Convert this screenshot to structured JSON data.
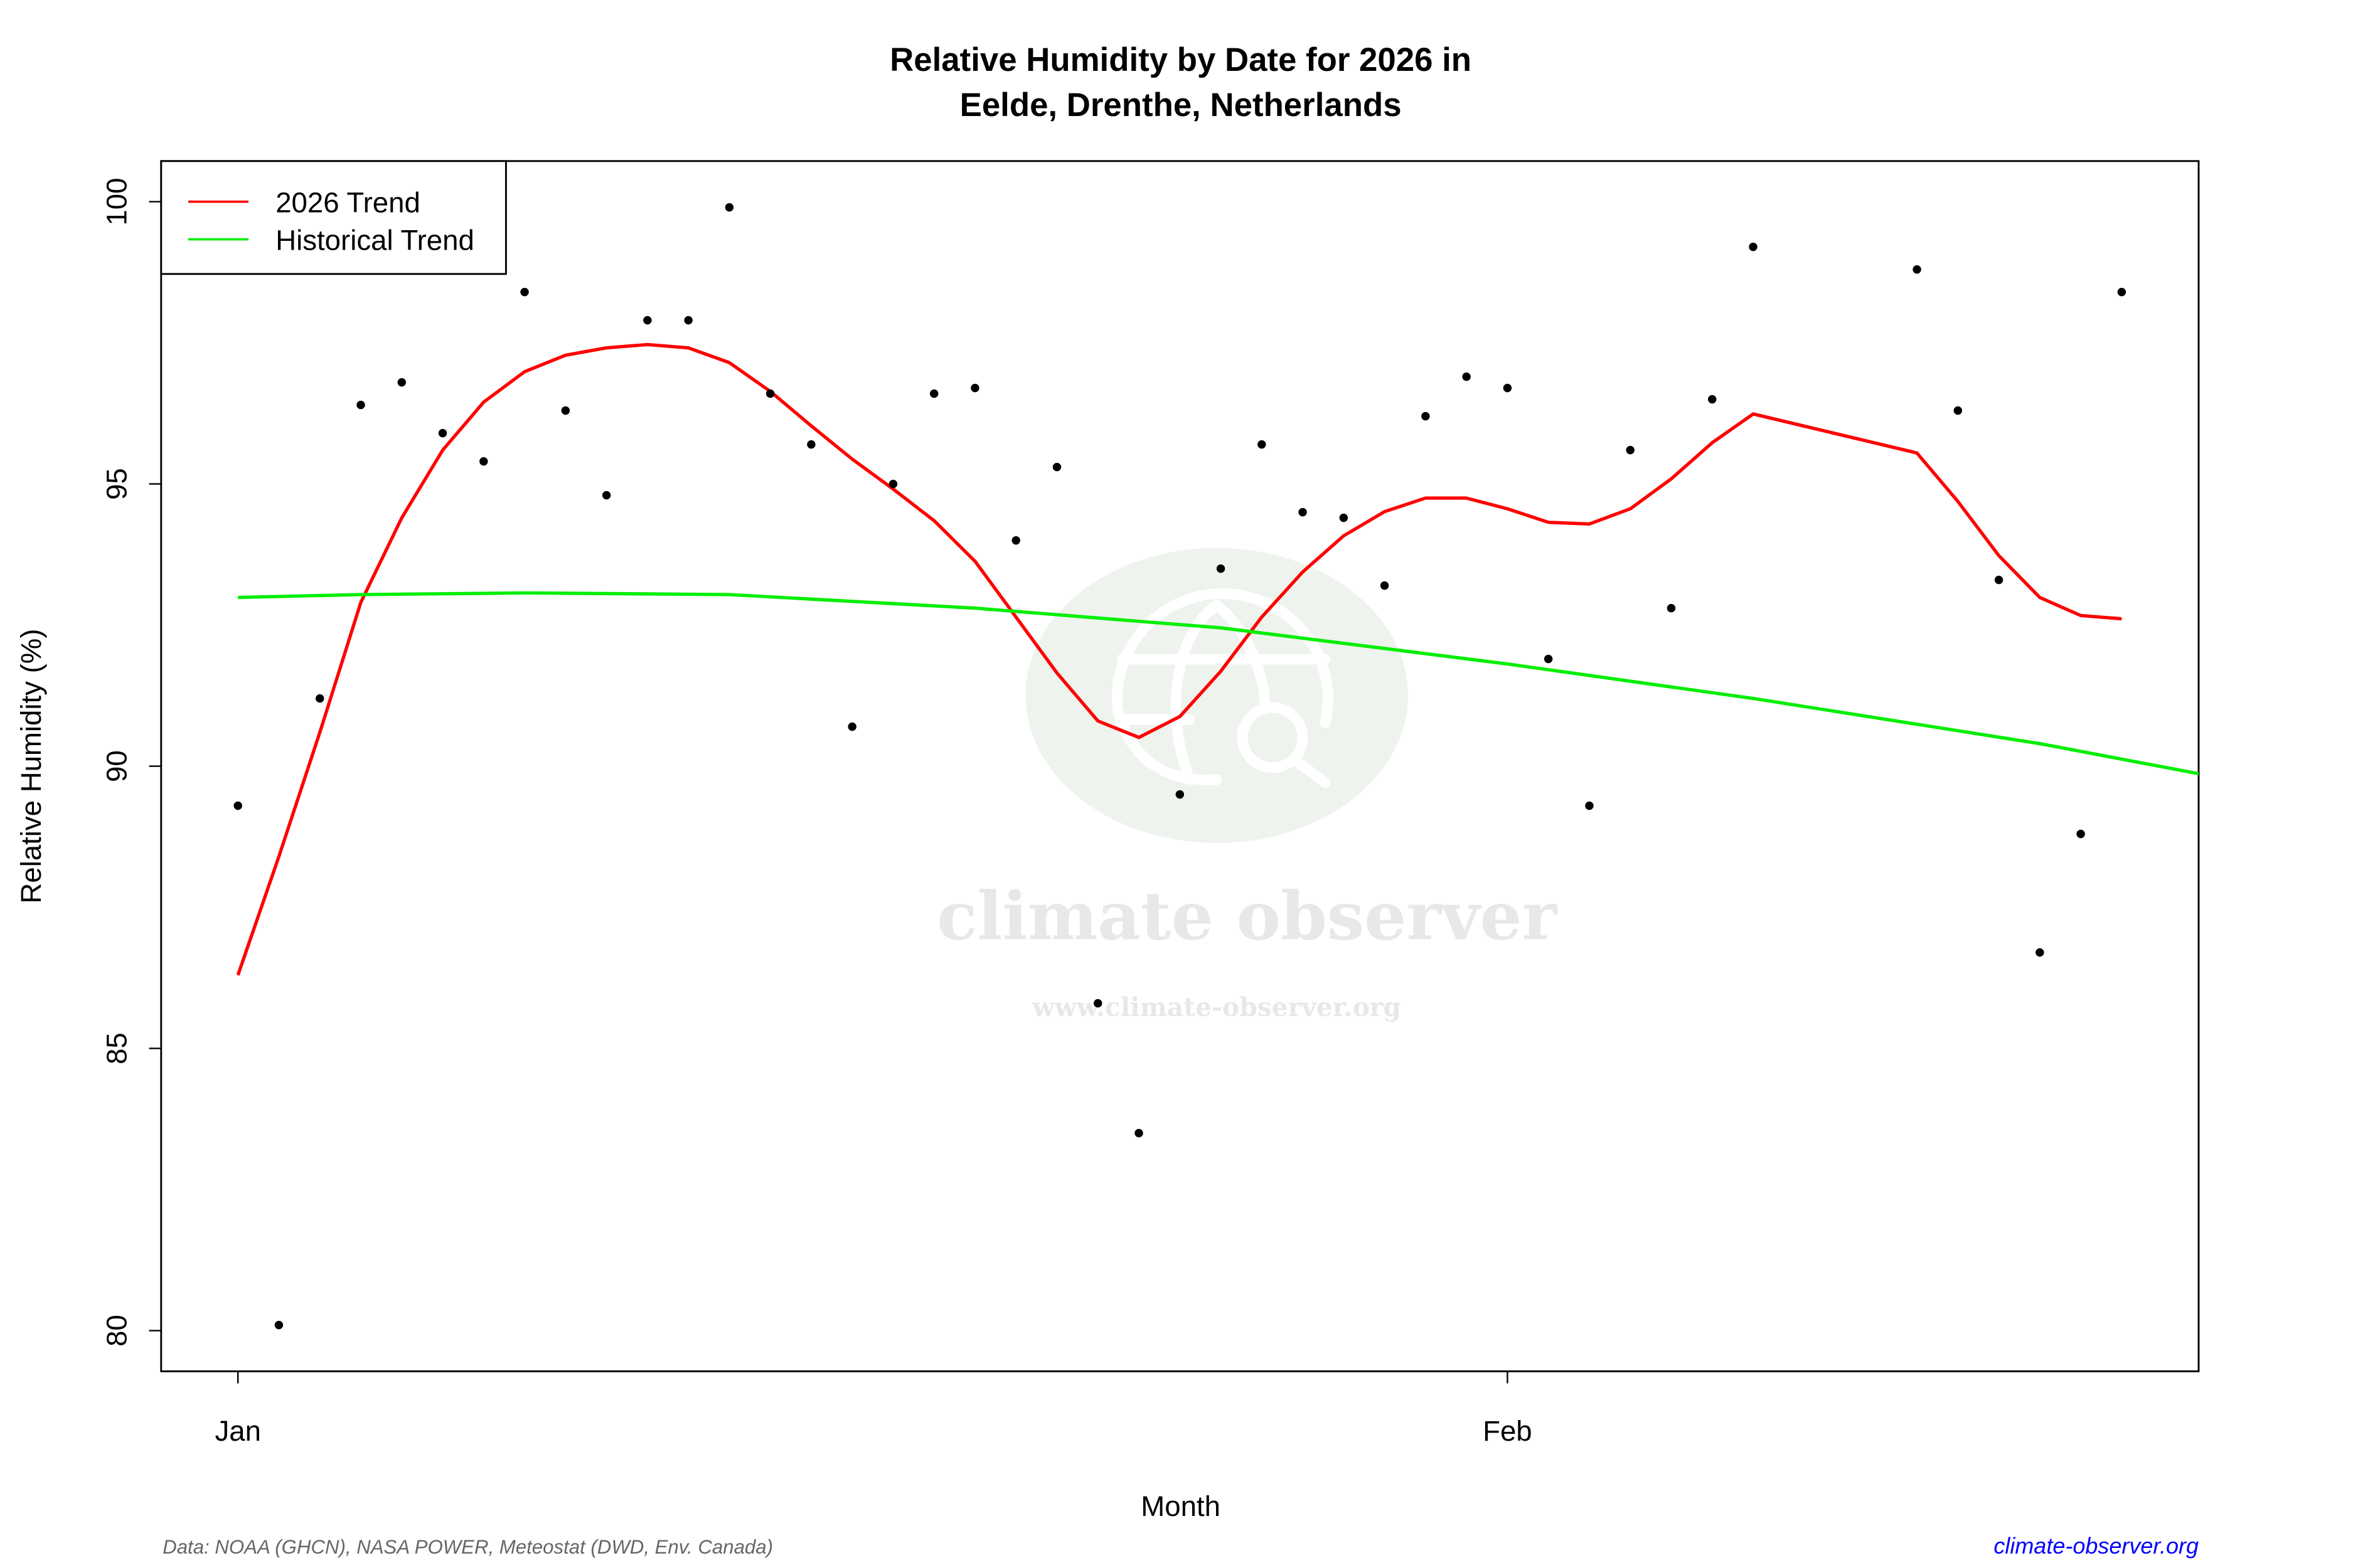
{
  "chart_data": {
    "type": "scatter",
    "title_line1": "Relative Humidity by Date for 2026 in",
    "title_line2": "Eelde, Drenthe, Netherlands",
    "xlabel": "Month",
    "ylabel": "Relative Humidity (%)",
    "xlim": [
      "2026-01-01",
      "2026-02-18"
    ],
    "ylim": [
      79.3,
      100.7
    ],
    "x_ticks": [
      {
        "date": "2026-01-01",
        "label": "Jan"
      },
      {
        "date": "2026-02-01",
        "label": "Feb"
      }
    ],
    "y_ticks": [
      80,
      85,
      90,
      95,
      100
    ],
    "grid": false,
    "legend_position": "top-left",
    "series": [
      {
        "name": "observations",
        "kind": "points",
        "color": "#000000",
        "points": [
          [
            "2026-01-01",
            89.3
          ],
          [
            "2026-01-02",
            80.1
          ],
          [
            "2026-01-03",
            91.2
          ],
          [
            "2026-01-04",
            96.4
          ],
          [
            "2026-01-05",
            96.8
          ],
          [
            "2026-01-06",
            95.9
          ],
          [
            "2026-01-07",
            95.4
          ],
          [
            "2026-01-08",
            98.4
          ],
          [
            "2026-01-09",
            96.3
          ],
          [
            "2026-01-10",
            94.8
          ],
          [
            "2026-01-11",
            97.9
          ],
          [
            "2026-01-12",
            97.9
          ],
          [
            "2026-01-13",
            99.9
          ],
          [
            "2026-01-14",
            96.6
          ],
          [
            "2026-01-15",
            95.7
          ],
          [
            "2026-01-16",
            90.7
          ],
          [
            "2026-01-17",
            95.0
          ],
          [
            "2026-01-18",
            96.6
          ],
          [
            "2026-01-19",
            96.7
          ],
          [
            "2026-01-20",
            94.0
          ],
          [
            "2026-01-21",
            95.3
          ],
          [
            "2026-01-22",
            85.8
          ],
          [
            "2026-01-23",
            83.5
          ],
          [
            "2026-01-24",
            89.5
          ],
          [
            "2026-01-25",
            93.5
          ],
          [
            "2026-01-26",
            95.7
          ],
          [
            "2026-01-27",
            94.5
          ],
          [
            "2026-01-28",
            94.4
          ],
          [
            "2026-01-29",
            93.2
          ],
          [
            "2026-01-30",
            96.2
          ],
          [
            "2026-01-31",
            96.9
          ],
          [
            "2026-02-01",
            96.7
          ],
          [
            "2026-02-02",
            91.9
          ],
          [
            "2026-02-03",
            89.3
          ],
          [
            "2026-02-04",
            95.6
          ],
          [
            "2026-02-05",
            92.8
          ],
          [
            "2026-02-06",
            96.5
          ],
          [
            "2026-02-07",
            99.2
          ],
          [
            "2026-02-11",
            98.8
          ],
          [
            "2026-02-12",
            96.3
          ],
          [
            "2026-02-13",
            93.3
          ],
          [
            "2026-02-14",
            86.7
          ],
          [
            "2026-02-15",
            88.8
          ],
          [
            "2026-02-16",
            98.4
          ]
        ]
      },
      {
        "name": "2026 Trend",
        "kind": "line",
        "color": "#ff0000",
        "points": [
          [
            "2026-01-01",
            86.3
          ],
          [
            "2026-01-02",
            88.4
          ],
          [
            "2026-01-03",
            90.6
          ],
          [
            "2026-01-04",
            92.9
          ],
          [
            "2026-01-05",
            94.4
          ],
          [
            "2026-01-06",
            95.6
          ],
          [
            "2026-01-07",
            96.45
          ],
          [
            "2026-01-08",
            96.99
          ],
          [
            "2026-01-09",
            97.28
          ],
          [
            "2026-01-10",
            97.41
          ],
          [
            "2026-01-11",
            97.47
          ],
          [
            "2026-01-12",
            97.41
          ],
          [
            "2026-01-13",
            97.15
          ],
          [
            "2026-01-14",
            96.64
          ],
          [
            "2026-01-15",
            96.03
          ],
          [
            "2026-01-16",
            95.44
          ],
          [
            "2026-01-17",
            94.91
          ],
          [
            "2026-01-18",
            94.35
          ],
          [
            "2026-01-19",
            93.63
          ],
          [
            "2026-01-20",
            92.64
          ],
          [
            "2026-01-21",
            91.65
          ],
          [
            "2026-01-22",
            90.8
          ],
          [
            "2026-01-23",
            90.51
          ],
          [
            "2026-01-24",
            90.88
          ],
          [
            "2026-01-25",
            91.68
          ],
          [
            "2026-01-26",
            92.64
          ],
          [
            "2026-01-27",
            93.44
          ],
          [
            "2026-01-28",
            94.08
          ],
          [
            "2026-01-29",
            94.51
          ],
          [
            "2026-01-30",
            94.75
          ],
          [
            "2026-01-31",
            94.75
          ],
          [
            "2026-02-01",
            94.56
          ],
          [
            "2026-02-02",
            94.32
          ],
          [
            "2026-02-03",
            94.29
          ],
          [
            "2026-02-04",
            94.56
          ],
          [
            "2026-02-05",
            95.09
          ],
          [
            "2026-02-06",
            95.73
          ],
          [
            "2026-02-07",
            96.24
          ],
          [
            "2026-02-11",
            95.55
          ],
          [
            "2026-02-12",
            94.69
          ],
          [
            "2026-02-13",
            93.73
          ],
          [
            "2026-02-14",
            92.99
          ],
          [
            "2026-02-15",
            92.67
          ],
          [
            "2026-02-16",
            92.61
          ]
        ]
      },
      {
        "name": "Historical Trend",
        "kind": "line",
        "color": "#00ee00",
        "points": [
          [
            "2026-01-01",
            92.99
          ],
          [
            "2026-01-04",
            93.04
          ],
          [
            "2026-01-08",
            93.07
          ],
          [
            "2026-01-13",
            93.04
          ],
          [
            "2026-01-19",
            92.8
          ],
          [
            "2026-01-25",
            92.45
          ],
          [
            "2026-02-01",
            91.81
          ],
          [
            "2026-02-07",
            91.2
          ],
          [
            "2026-02-14",
            90.4
          ],
          [
            "2026-02-18",
            89.85
          ]
        ]
      }
    ]
  },
  "footer": {
    "source": "Data: NOAA (GHCN), NASA POWER, Meteostat (DWD, Env. Canada)",
    "site": "climate-observer.org",
    "site_color": "#0000ff"
  },
  "watermark": {
    "name": "climate observer",
    "url": "www.climate-observer.org",
    "icon": "globe-search-icon"
  }
}
